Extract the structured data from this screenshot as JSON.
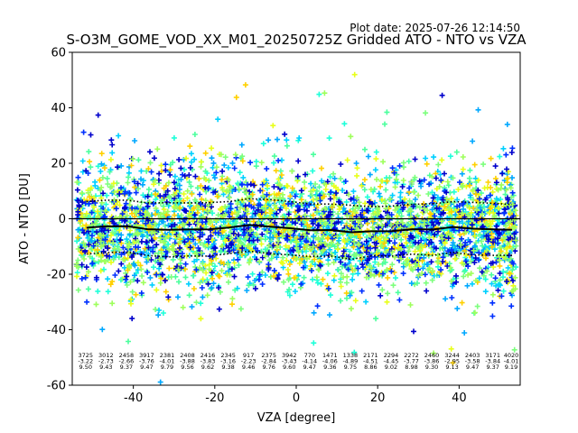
{
  "chart_data": {
    "type": "scatter",
    "title": "S-O3M_GOME_VOD_XX_M01_20250725Z Gridded ATO - NTO vs VZA",
    "plot_date": "Plot date: 2025-07-26 12:14:50",
    "xlabel": "VZA [degree]",
    "ylabel": "ATO - NTO [DU]",
    "xlim": [
      -55,
      55
    ],
    "ylim": [
      -60,
      60
    ],
    "xticks": [
      -40,
      -20,
      0,
      20,
      40
    ],
    "yticks": [
      -60,
      -40,
      -20,
      0,
      20,
      40,
      60
    ],
    "grid": false,
    "marker": "plus",
    "point_colors": [
      "#1fffd9",
      "#00d0ff",
      "#4cff9e",
      "#7dff7d",
      "#00a8ff",
      "#e8ff1a",
      "#ffd000",
      "#0030ff",
      "#0000cc",
      "#9eff5c"
    ],
    "zero_line": 0,
    "stats_x": [
      -51.5,
      -46.5,
      -41.5,
      -36.5,
      -31.5,
      -26.5,
      -21.5,
      -16.5,
      -11.5,
      -6.5,
      -1.5,
      3.5,
      8.5,
      13.5,
      18.5,
      23.5,
      28.5,
      33.5,
      38.5,
      43.5,
      48.5,
      53.0
    ],
    "count": [
      "3725",
      "3012",
      "2458",
      "3917",
      "2381",
      "2408",
      "2416",
      "2345",
      "917",
      "2375",
      "3942",
      "770",
      "1471",
      "1338",
      "2171",
      "2294",
      "2272",
      "2460",
      "3244",
      "2403",
      "3171",
      "4020"
    ],
    "mean": [
      -3.22,
      -2.73,
      -2.66,
      -3.76,
      -4.01,
      -3.88,
      -3.83,
      -3.16,
      -2.23,
      -2.84,
      -3.43,
      -4.14,
      -4.06,
      -4.89,
      -4.51,
      -4.45,
      -3.77,
      -3.86,
      -2.95,
      -3.58,
      -3.84,
      -4.01
    ],
    "std": [
      9.5,
      9.43,
      9.37,
      9.47,
      9.79,
      9.56,
      9.62,
      9.38,
      9.46,
      9.76,
      9.6,
      9.47,
      9.36,
      9.75,
      8.86,
      9.02,
      8.98,
      9.3,
      9.13,
      9.47,
      9.37,
      9.19
    ],
    "count_text": [
      "3725",
      "3012",
      "2458",
      "3917",
      "2381",
      "2408",
      "2416",
      "2345",
      "917",
      "2375",
      "3942",
      "770",
      "1471",
      "1338",
      "2171",
      "2294",
      "2272",
      "2460",
      "3244",
      "2403",
      "3171",
      "4020"
    ],
    "mean_text": [
      "-3.22",
      "-2.73",
      "-2.66",
      "-3.76",
      "-4.01",
      "-3.88",
      "-3.83",
      "-3.16",
      "-2.23",
      "-2.84",
      "-3.43",
      "-4.14",
      "-4.06",
      "-4.89",
      "-4.51",
      "-4.45",
      "-3.77",
      "-3.86",
      "-2.95",
      "-3.58",
      "-3.84",
      "-4.01"
    ],
    "std_text": [
      "9.50",
      "9.43",
      "9.37",
      "9.47",
      "9.79",
      "9.56",
      "9.62",
      "9.38",
      "9.46",
      "9.76",
      "9.60",
      "9.47",
      "9.36",
      "9.75",
      "8.86",
      "9.02",
      "8.98",
      "9.30",
      "9.13",
      "9.47",
      "9.37",
      "9.19"
    ]
  }
}
